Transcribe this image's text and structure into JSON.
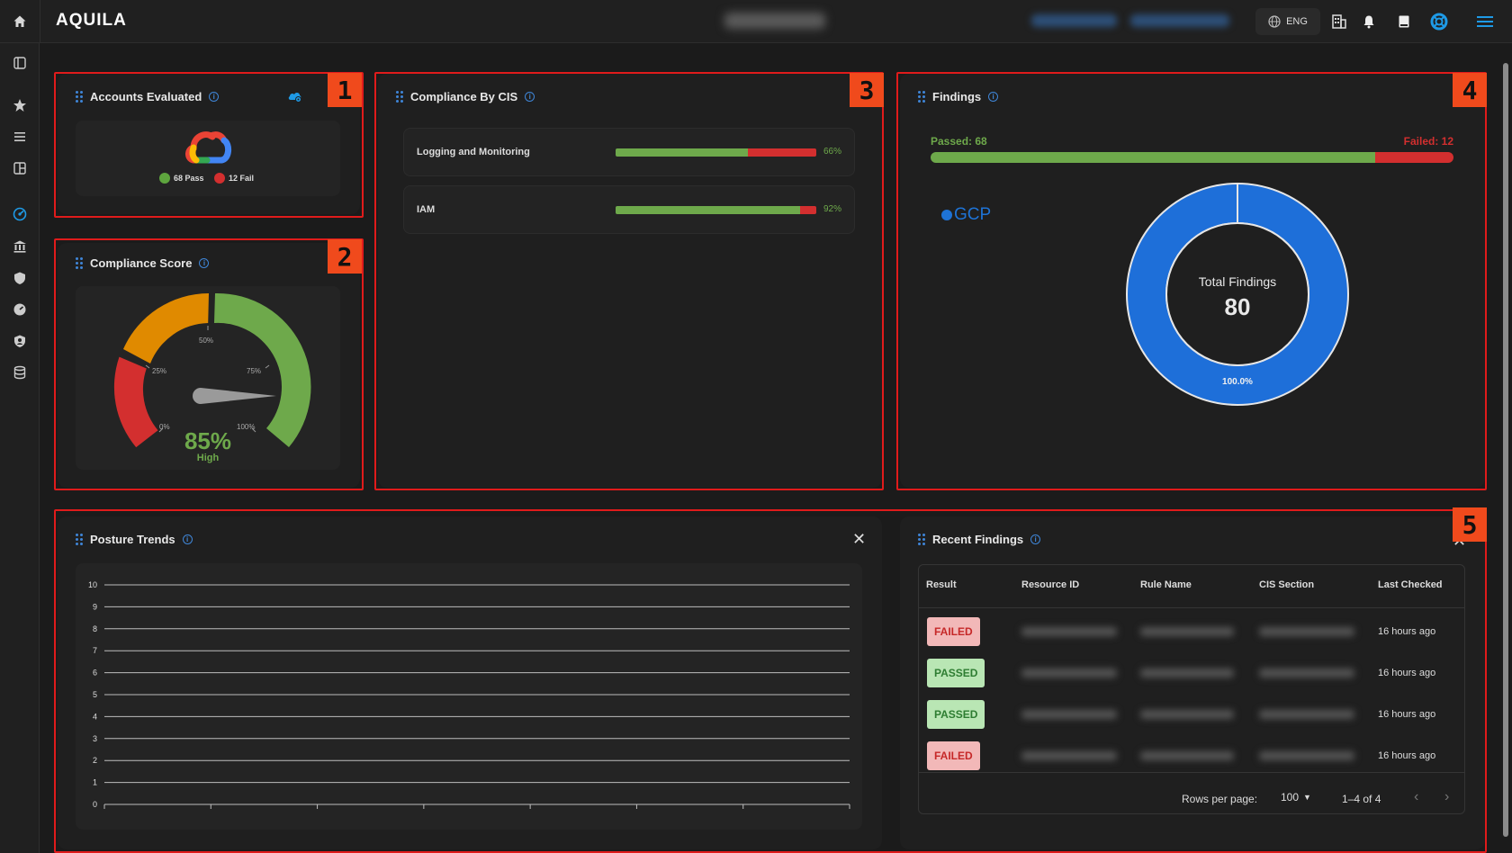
{
  "app": {
    "logo": "AQUILA",
    "language": "ENG"
  },
  "cards": {
    "accounts": {
      "badge": "1",
      "title": "Accounts Evaluated",
      "pass_label": "68 Pass",
      "fail_label": "12 Fail",
      "pass_count": 68,
      "fail_count": 12
    },
    "score": {
      "badge": "2",
      "title": "Compliance Score",
      "value": "85%",
      "level": "High",
      "ticks": [
        "0%",
        "25%",
        "50%",
        "75%",
        "100%"
      ],
      "score_fraction": 0.85
    },
    "cis": {
      "badge": "3",
      "title": "Compliance By CIS",
      "rows": [
        {
          "label": "Logging and Monitoring",
          "percent": "66%",
          "pass_fraction": 0.66
        },
        {
          "label": "IAM",
          "percent": "92%",
          "pass_fraction": 0.92
        }
      ]
    },
    "findings": {
      "badge": "4",
      "title": "Findings",
      "passed_label": "Passed: 68",
      "failed_label": "Failed: 12",
      "passed": 68,
      "failed": 12,
      "legend": "GCP",
      "center_label": "Total Findings",
      "total": "80",
      "slice_label": "100.0%"
    },
    "trends": {
      "title": "Posture Trends",
      "y_ticks": [
        "10",
        "9",
        "8",
        "7",
        "6",
        "5",
        "4",
        "3",
        "2",
        "1",
        "0"
      ]
    },
    "recent": {
      "badge": "5",
      "title": "Recent Findings",
      "columns": [
        "Result",
        "Resource ID",
        "Rule Name",
        "CIS Section",
        "Last Checked"
      ],
      "rows": [
        {
          "result": "FAILED",
          "last_checked": "16 hours ago"
        },
        {
          "result": "PASSED",
          "last_checked": "16 hours ago"
        },
        {
          "result": "PASSED",
          "last_checked": "16 hours ago"
        },
        {
          "result": "FAILED",
          "last_checked": "16 hours ago"
        }
      ],
      "rows_per_page_label": "Rows per page:",
      "rows_per_page": "100",
      "range": "1–4 of 4"
    }
  },
  "chart_data": {
    "type": "line",
    "y_ticks": [
      0,
      1,
      2,
      3,
      4,
      5,
      6,
      7,
      8,
      9,
      10
    ],
    "ylim": [
      0,
      10
    ],
    "series": [],
    "grid": true
  },
  "colors": {
    "pass": "#6ea94b",
    "fail": "#d32f2f",
    "warn": "#e08a00",
    "accent": "#1e73d6",
    "marker": "#e01b1b"
  }
}
